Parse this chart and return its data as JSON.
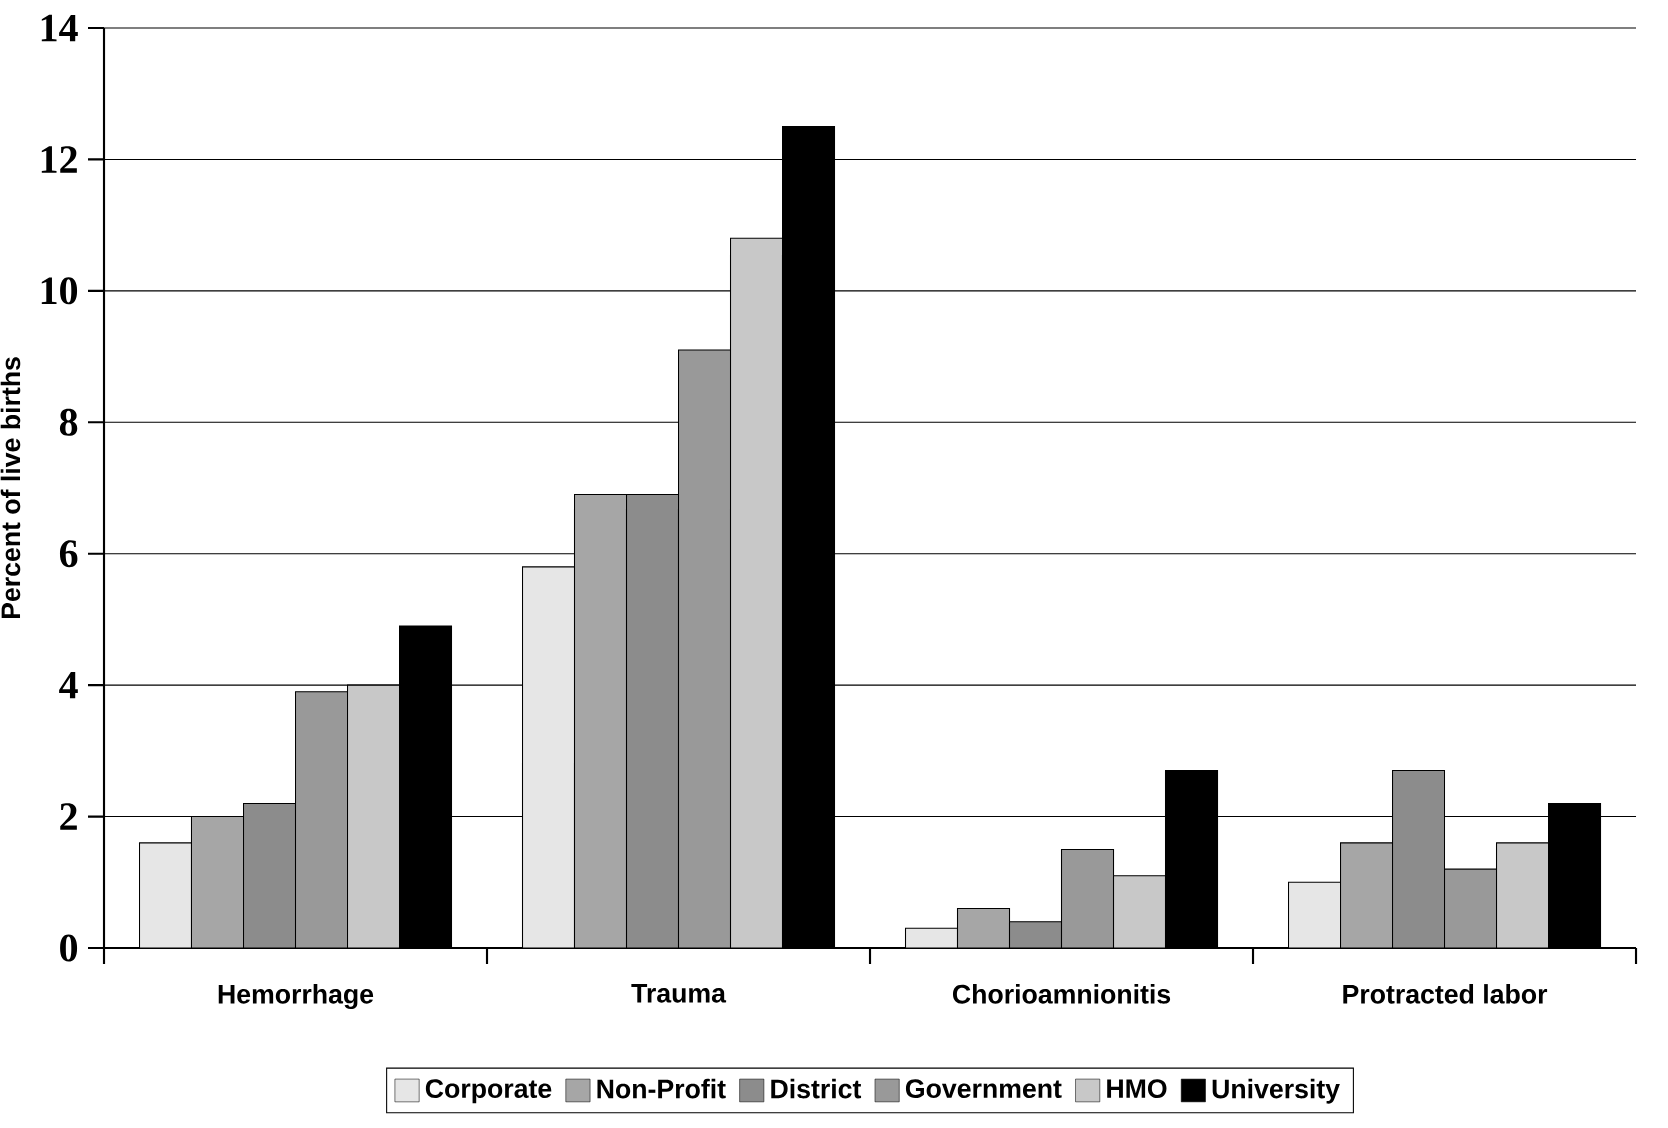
{
  "chart_data": {
    "type": "bar",
    "ylabel": "Percent of live births",
    "categories": [
      "Hemorrhage",
      "Trauma",
      "Chorioamnionitis",
      "Protracted labor"
    ],
    "series": [
      {
        "name": "Corporate",
        "color": "#e6e6e6",
        "values": [
          1.6,
          5.8,
          0.3,
          1.0
        ]
      },
      {
        "name": "Non-Profit",
        "color": "#a6a6a6",
        "values": [
          2.0,
          6.9,
          0.6,
          1.6
        ]
      },
      {
        "name": "District",
        "color": "#8c8c8c",
        "values": [
          2.2,
          6.9,
          0.4,
          2.7
        ]
      },
      {
        "name": "Government",
        "color": "#999999",
        "values": [
          3.9,
          9.1,
          1.5,
          1.2
        ]
      },
      {
        "name": "HMO",
        "color": "#c8c8c8",
        "values": [
          4.0,
          10.8,
          1.1,
          1.6
        ]
      },
      {
        "name": "University",
        "color": "#000000",
        "values": [
          4.9,
          12.5,
          2.7,
          2.2
        ]
      }
    ],
    "ylim": [
      0,
      14
    ],
    "yticks": [
      0,
      2,
      4,
      6,
      8,
      10,
      12,
      14
    ],
    "grid": "y",
    "legend": "bottom"
  }
}
